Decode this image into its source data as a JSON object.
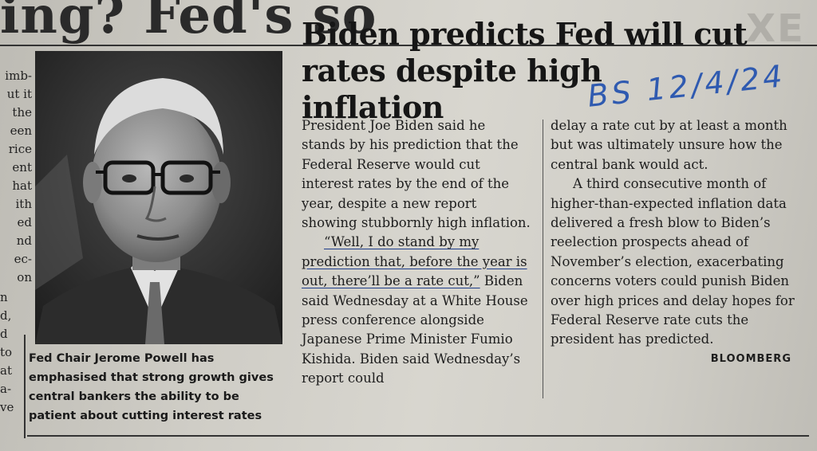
{
  "previous_headline_fragment": "ing? Fed's so",
  "right_fragment": "XE",
  "left_column_fragments": [
    "imb-",
    "ut it",
    "the",
    "een",
    "rice",
    "ent",
    "hat",
    "ith",
    "ed",
    "nd",
    "ec-",
    "on"
  ],
  "left_column_fragments_lower": [
    "n",
    "d,",
    "d",
    "to",
    "at",
    "",
    "a-",
    "ve"
  ],
  "article": {
    "headline": "Biden predicts Fed will cut rates despite high inflation",
    "caption": "Fed Chair Jerome Powell has emphasised that strong growth gives central bankers the ability to be patient about cutting interest rates",
    "col1_p1": "President Joe Biden said he stands by his prediction that the Federal Reserve would cut interest rates by the end of the year, despite a new report showing stubbornly high inflation.",
    "col1_quote": "“Well, I do stand by my prediction that, before the year is out, there’ll be a rate cut,”",
    "col1_p2_rest": " Biden said Wednesday at a White House press conference alongside Japanese Prime Minister Fumio Kishida. Biden said Wednesday’s report could",
    "col2_p1": "delay a rate cut by at least a month but was ultimately unsure how the central bank would act.",
    "col2_p2": "A third consecutive month of higher-than-expected inflation data delivered a fresh blow to Biden’s reelection prospects ahead of November’s election, exacerbating concerns voters could punish Biden over high prices and delay hopes for Federal Reserve rate cuts the president has predicted.",
    "byline": "BLOOMBERG"
  },
  "handwritten_annotation": "BS 12/4/24",
  "colors": {
    "ink": "#1c1c1c",
    "pen": "#2f5ab0",
    "paper": "#d4d2cb"
  }
}
